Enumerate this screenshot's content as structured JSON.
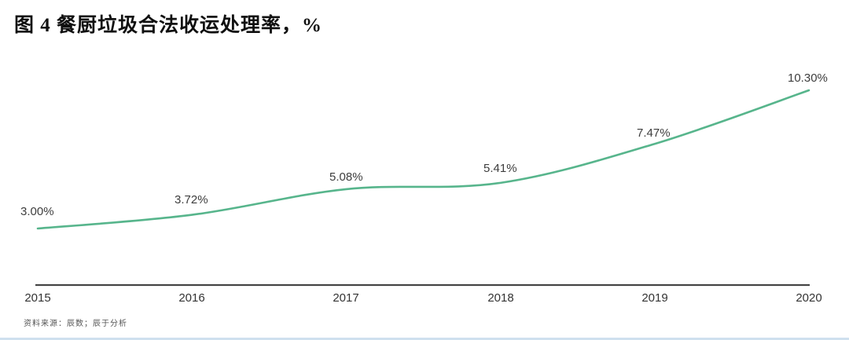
{
  "figure": {
    "title": "图 4 餐厨垃圾合法收运处理率，%",
    "source_note": "资料来源：辰数；辰于分析"
  },
  "colors": {
    "line": "#57b58c",
    "axis": "#454545",
    "label": "#3d3d3d",
    "title": "#101010",
    "source": "#555555"
  },
  "chart_data": {
    "type": "line",
    "title": "图 4 餐厨垃圾合法收运处理率，%",
    "x": [
      "2015",
      "2016",
      "2017",
      "2018",
      "2019",
      "2020"
    ],
    "values": [
      3.0,
      3.72,
      5.08,
      5.41,
      7.47,
      10.3
    ],
    "point_labels": [
      "3.00%",
      "3.72%",
      "5.08%",
      "5.41%",
      "7.47%",
      "10.30%"
    ],
    "unit": "%",
    "xlabel": "",
    "ylabel": "",
    "ylim": [
      2.5,
      11
    ],
    "grid": false,
    "legend": false,
    "line_style": "smooth"
  }
}
